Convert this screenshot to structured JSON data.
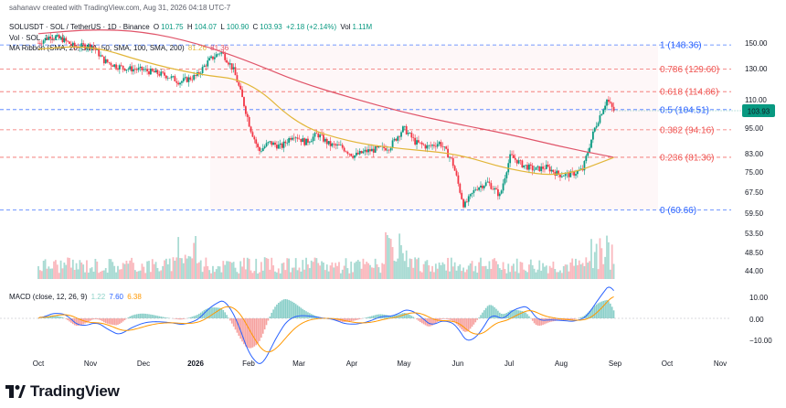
{
  "header": {
    "credit": "sahanavv created with TradingView.com, Aug 31, 2026 04:18 UTC-7",
    "symbol": "SOLUSDT · SOL / TetherUS · 1D · Binance",
    "ohlc": {
      "open_label": "O",
      "open": "101.75",
      "high_label": "H",
      "high": "104.07",
      "low_label": "L",
      "low": "100.90",
      "close_label": "C",
      "close": "103.93",
      "change": "+2.18 (+2.14%)",
      "vol_label": "Vol",
      "vol": "1.11M"
    },
    "vol_line": {
      "label": "Vol · SOL",
      "value": "1.11M"
    },
    "ma_line": {
      "label": "MA Ribbon (SMA, 20, SMA, 50, SMA, 100, SMA, 200)",
      "v1": "81.26",
      "v2": "81.36"
    },
    "macd_line": {
      "label": "MACD (close, 12, 26, 9)",
      "v1": "1.22",
      "v2": "7.60",
      "v3": "6.38"
    }
  },
  "logo": {
    "text": "TradingView"
  },
  "current_price": "103.93",
  "colors": {
    "up": "#089981",
    "down": "#f23645",
    "fib_blue": "#2962ff",
    "fib_red": "#ef5350",
    "sma200": "#e0556a",
    "sma50": "#e2b63a",
    "macd": "#2962ff",
    "signal": "#ff9800"
  },
  "chart_data": {
    "type": "candlestick",
    "symbol": "SOLUSDT",
    "timeframe": "1D",
    "price_axis_ticks": [
      "150.00",
      "130.00",
      "110.00",
      "95.00",
      "83.00",
      "75.00",
      "67.50",
      "59.50",
      "53.50",
      "48.50",
      "44.00"
    ],
    "macd_axis_ticks": [
      "10.00",
      "0.00",
      "−10.00"
    ],
    "time_axis_ticks": [
      "Oct",
      "Nov",
      "Dec",
      "2026",
      "Feb",
      "Mar",
      "Apr",
      "May",
      "Jun",
      "Jul",
      "Aug",
      "Sep",
      "Oct",
      "Nov"
    ],
    "fib_levels": [
      {
        "ratio": "1",
        "price": 148.36,
        "label": "1 (148.36)",
        "color": "#2962ff"
      },
      {
        "ratio": "0.786",
        "price": 129.6,
        "label": "0.786 (129.60)",
        "color": "#ef5350"
      },
      {
        "ratio": "0.618",
        "price": 114.86,
        "label": "0.618 (114.86)",
        "color": "#ef5350"
      },
      {
        "ratio": "0.5",
        "price": 104.51,
        "label": "0.5 (104.51)",
        "color": "#2962ff"
      },
      {
        "ratio": "0.382",
        "price": 94.16,
        "label": "0.382 (94.16)",
        "color": "#ef5350"
      },
      {
        "ratio": "0.236",
        "price": 81.36,
        "label": "0.236 (81.36)",
        "color": "#ef5350"
      },
      {
        "ratio": "0",
        "price": 60.66,
        "label": "0 (60.66)",
        "color": "#2962ff"
      }
    ],
    "price_path": [
      {
        "date": "2025-10-01",
        "price": 150
      },
      {
        "date": "2025-10-08",
        "price": 156
      },
      {
        "date": "2025-10-15",
        "price": 153
      },
      {
        "date": "2025-10-22",
        "price": 147
      },
      {
        "date": "2025-11-01",
        "price": 148
      },
      {
        "date": "2025-11-08",
        "price": 136
      },
      {
        "date": "2025-11-15",
        "price": 132
      },
      {
        "date": "2025-11-22",
        "price": 130
      },
      {
        "date": "2025-12-01",
        "price": 129
      },
      {
        "date": "2025-12-08",
        "price": 127
      },
      {
        "date": "2025-12-15",
        "price": 125
      },
      {
        "date": "2025-12-22",
        "price": 121
      },
      {
        "date": "2026-01-01",
        "price": 125
      },
      {
        "date": "2026-01-08",
        "price": 136
      },
      {
        "date": "2026-01-15",
        "price": 143
      },
      {
        "date": "2026-01-22",
        "price": 130
      },
      {
        "date": "2026-01-29",
        "price": 105
      },
      {
        "date": "2026-02-01",
        "price": 95
      },
      {
        "date": "2026-02-06",
        "price": 84
      },
      {
        "date": "2026-02-12",
        "price": 88
      },
      {
        "date": "2026-02-19",
        "price": 86
      },
      {
        "date": "2026-02-26",
        "price": 92
      },
      {
        "date": "2026-03-05",
        "price": 88
      },
      {
        "date": "2026-03-12",
        "price": 92
      },
      {
        "date": "2026-03-19",
        "price": 87
      },
      {
        "date": "2026-03-26",
        "price": 86
      },
      {
        "date": "2026-04-02",
        "price": 82
      },
      {
        "date": "2026-04-09",
        "price": 84
      },
      {
        "date": "2026-04-16",
        "price": 85
      },
      {
        "date": "2026-04-23",
        "price": 86
      },
      {
        "date": "2026-05-01",
        "price": 95
      },
      {
        "date": "2026-05-08",
        "price": 88
      },
      {
        "date": "2026-05-15",
        "price": 86
      },
      {
        "date": "2026-05-22",
        "price": 88
      },
      {
        "date": "2026-05-29",
        "price": 80
      },
      {
        "date": "2026-06-05",
        "price": 62
      },
      {
        "date": "2026-06-12",
        "price": 69
      },
      {
        "date": "2026-06-19",
        "price": 71
      },
      {
        "date": "2026-06-26",
        "price": 66
      },
      {
        "date": "2026-07-02",
        "price": 82
      },
      {
        "date": "2026-07-09",
        "price": 78
      },
      {
        "date": "2026-07-16",
        "price": 76
      },
      {
        "date": "2026-07-23",
        "price": 77
      },
      {
        "date": "2026-07-30",
        "price": 74
      },
      {
        "date": "2026-08-06",
        "price": 74
      },
      {
        "date": "2026-08-13",
        "price": 76
      },
      {
        "date": "2026-08-20",
        "price": 95
      },
      {
        "date": "2026-08-27",
        "price": 110
      },
      {
        "date": "2026-08-31",
        "price": 103.93
      }
    ],
    "sma200_path": [
      {
        "date": "2025-10-01",
        "price": 158
      },
      {
        "date": "2025-11-01",
        "price": 162
      },
      {
        "date": "2025-12-01",
        "price": 160
      },
      {
        "date": "2026-01-01",
        "price": 150
      },
      {
        "date": "2026-02-01",
        "price": 135
      },
      {
        "date": "2026-03-01",
        "price": 121
      },
      {
        "date": "2026-04-01",
        "price": 111
      },
      {
        "date": "2026-05-01",
        "price": 103
      },
      {
        "date": "2026-06-01",
        "price": 97
      },
      {
        "date": "2026-07-01",
        "price": 92
      },
      {
        "date": "2026-08-01",
        "price": 86
      },
      {
        "date": "2026-08-31",
        "price": 81.36
      }
    ],
    "sma50_path": [
      {
        "date": "2025-10-01",
        "price": 145
      },
      {
        "date": "2025-11-01",
        "price": 148
      },
      {
        "date": "2025-12-01",
        "price": 135
      },
      {
        "date": "2026-01-01",
        "price": 126
      },
      {
        "date": "2026-02-01",
        "price": 122
      },
      {
        "date": "2026-03-01",
        "price": 96
      },
      {
        "date": "2026-04-01",
        "price": 88
      },
      {
        "date": "2026-05-01",
        "price": 85
      },
      {
        "date": "2026-06-01",
        "price": 83
      },
      {
        "date": "2026-07-01",
        "price": 76
      },
      {
        "date": "2026-08-01",
        "price": 73
      },
      {
        "date": "2026-08-31",
        "price": 81.26
      }
    ],
    "macd_values": {
      "macd": 7.6,
      "signal": 6.38,
      "histogram": 1.22
    }
  }
}
